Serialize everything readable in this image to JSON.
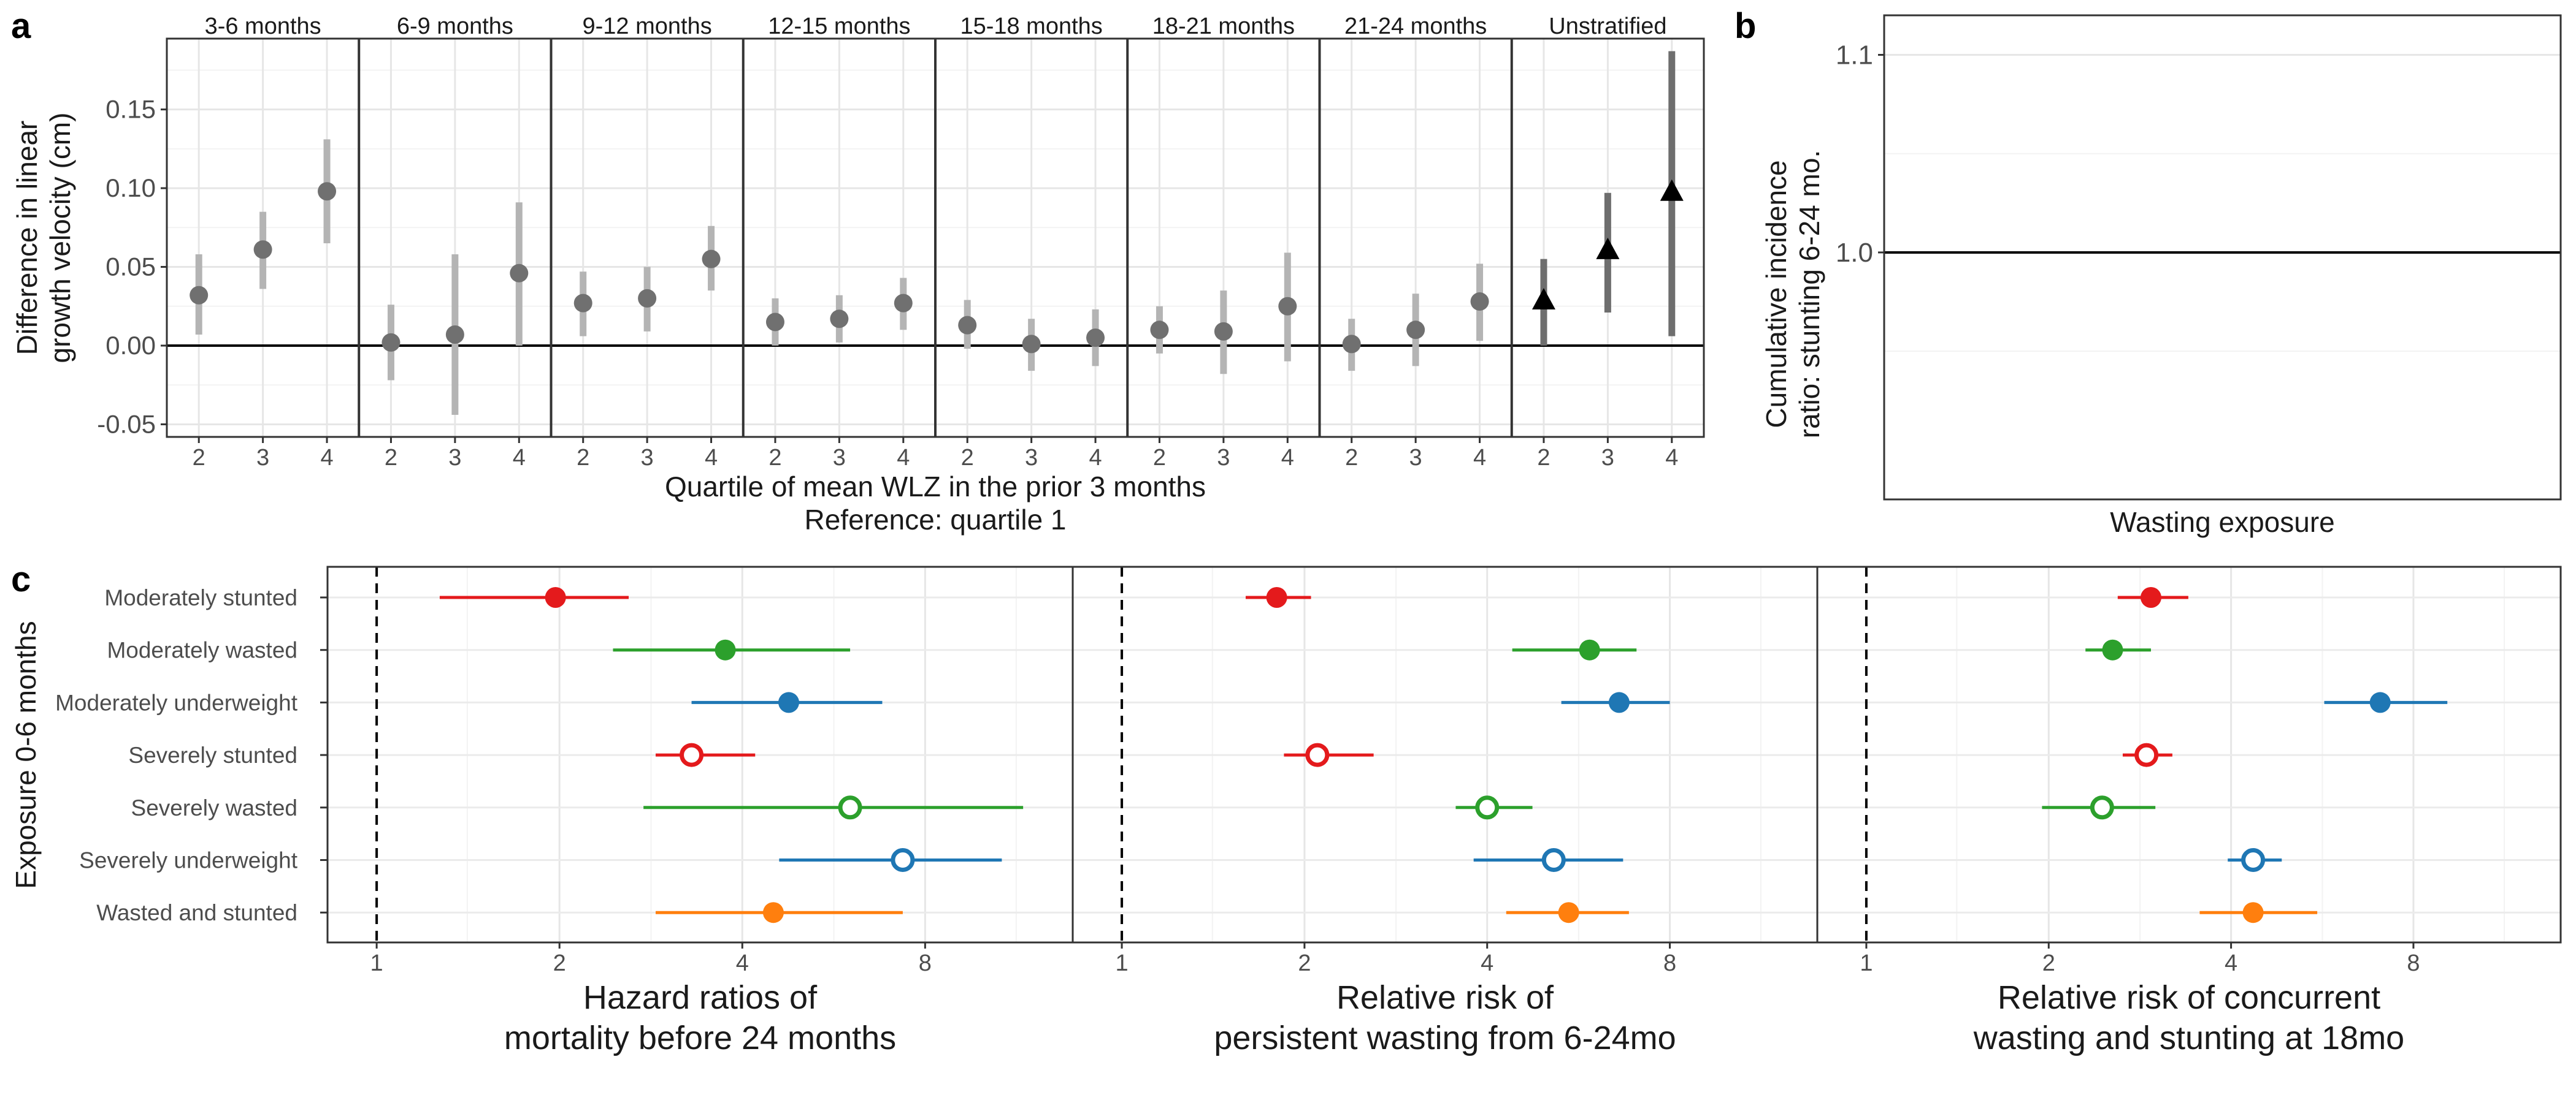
{
  "panel_a": {
    "letter": "a",
    "ylabel": [
      "Difference in linear",
      "growth velocity (cm)"
    ],
    "xlabel": [
      "Quartile of mean WLZ in the prior 3 months",
      "Reference: quartile 1"
    ],
    "yticks": [
      -0.05,
      0.0,
      0.05,
      0.1,
      0.15
    ],
    "ytick_labels": [
      "-0.05",
      "0.00",
      "0.05",
      "0.10",
      "0.15"
    ]
  },
  "panel_b": {
    "letter": "b",
    "ylabel": [
      "Cumulative incidence",
      "ratio: stunting 6-24 mo."
    ],
    "xlabel": "Wasting exposure",
    "ytick_labels": [
      "1.0",
      "1.1"
    ]
  },
  "panel_c": {
    "letter": "c",
    "ylabel": "Exposure 0-6 months",
    "xtick_labels": [
      "1",
      "2",
      "4",
      "8"
    ]
  },
  "chart_data": [
    {
      "type": "scatter",
      "panel": "a",
      "facets": [
        "3-6 months",
        "6-9 months",
        "9-12 months",
        "12-15 months",
        "15-18 months",
        "18-21 months",
        "21-24 months",
        "Unstratified"
      ],
      "categories": [
        "2",
        "3",
        "4"
      ],
      "ylim": [
        -0.058,
        0.195
      ],
      "estimates": [
        [
          0.032,
          0.061,
          0.098
        ],
        [
          0.002,
          0.007,
          0.046
        ],
        [
          0.027,
          0.03,
          0.055
        ],
        [
          0.015,
          0.017,
          0.027
        ],
        [
          0.013,
          0.001,
          0.005
        ],
        [
          0.01,
          0.009,
          0.025
        ],
        [
          0.001,
          0.01,
          0.028
        ],
        [
          0.028,
          0.06,
          0.097
        ]
      ],
      "lower": [
        [
          0.007,
          0.036,
          0.065
        ],
        [
          -0.022,
          -0.044,
          0.0
        ],
        [
          0.006,
          0.009,
          0.035
        ],
        [
          0.0,
          0.002,
          0.01
        ],
        [
          -0.002,
          -0.016,
          -0.013
        ],
        [
          -0.005,
          -0.018,
          -0.01
        ],
        [
          -0.016,
          -0.013,
          0.003
        ],
        [
          0.0,
          0.021,
          0.006
        ]
      ],
      "upper": [
        [
          0.058,
          0.085,
          0.131
        ],
        [
          0.026,
          0.058,
          0.091
        ],
        [
          0.047,
          0.05,
          0.076
        ],
        [
          0.03,
          0.032,
          0.043
        ],
        [
          0.029,
          0.017,
          0.023
        ],
        [
          0.025,
          0.035,
          0.059
        ],
        [
          0.017,
          0.033,
          0.052
        ],
        [
          0.055,
          0.097,
          0.187
        ]
      ],
      "reference_line": 0
    },
    {
      "type": "scatter",
      "panel": "b",
      "ylim": [
        0.875,
        1.12
      ],
      "reference_line": 1.0,
      "points": []
    },
    {
      "type": "scatter",
      "panel": "c",
      "scale": "log2",
      "xlim": [
        0.83,
        14.0
      ],
      "reference_line": 1,
      "categories": [
        "Moderately stunted",
        "Moderately wasted",
        "Moderately underweight",
        "Severely stunted",
        "Severely wasted",
        "Severely underweight",
        "Wasted and stunted"
      ],
      "colors": [
        "#E41A1C",
        "#2CA02C",
        "#1F77B4",
        "#E41A1C",
        "#2CA02C",
        "#1F77B4",
        "#FF7F0E"
      ],
      "hollow": [
        false,
        false,
        false,
        true,
        true,
        true,
        false
      ],
      "facets": [
        {
          "title": [
            "Hazard ratios of",
            "mortality before 24 months"
          ],
          "est": [
            1.97,
            3.75,
            4.77,
            3.3,
            6.02,
            7.35,
            4.5
          ],
          "lo": [
            1.27,
            2.45,
            3.3,
            2.88,
            2.75,
            4.6,
            2.88
          ],
          "hi": [
            2.6,
            6.02,
            6.8,
            4.2,
            11.6,
            10.7,
            7.35
          ]
        },
        {
          "title": [
            "Relative risk of",
            "persistent wasting from 6-24mo"
          ],
          "est": [
            1.8,
            5.9,
            6.6,
            2.1,
            4.0,
            5.15,
            5.45
          ],
          "lo": [
            1.6,
            4.4,
            5.3,
            1.85,
            3.55,
            3.8,
            4.3
          ],
          "hi": [
            2.05,
            7.05,
            8.0,
            2.6,
            4.75,
            6.7,
            6.85
          ]
        },
        {
          "title": [
            "Relative risk of concurrent",
            "wasting and stunting at 18mo"
          ],
          "est": [
            2.95,
            2.55,
            7.05,
            2.9,
            2.45,
            4.35,
            4.35
          ],
          "lo": [
            2.6,
            2.3,
            5.7,
            2.65,
            1.95,
            3.95,
            3.55
          ],
          "hi": [
            3.4,
            2.95,
            9.1,
            3.2,
            3.0,
            4.85,
            5.55
          ]
        }
      ]
    }
  ]
}
